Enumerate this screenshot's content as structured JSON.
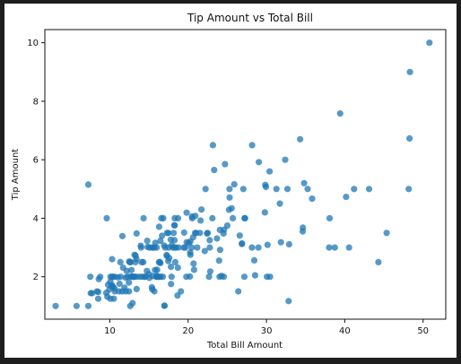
{
  "chart_data": {
    "type": "scatter",
    "title": "Tip Amount vs Total Bill",
    "xlabel": "Total Bill Amount",
    "ylabel": "Tip Amount",
    "xlim": [
      1.7,
      52.9
    ],
    "ylim": [
      0.55,
      10.45
    ],
    "xticks": [
      10,
      20,
      30,
      40,
      50
    ],
    "yticks": [
      2,
      4,
      6,
      8,
      10
    ],
    "grid": false,
    "point_color": "#1f77b4",
    "point_opacity": 0.75,
    "points": [
      [
        3.07,
        1.0
      ],
      [
        5.75,
        1.0
      ],
      [
        7.25,
        1.0
      ],
      [
        7.25,
        5.15
      ],
      [
        7.51,
        2.0
      ],
      [
        7.56,
        1.44
      ],
      [
        7.74,
        1.44
      ],
      [
        8.35,
        1.5
      ],
      [
        8.51,
        1.25
      ],
      [
        8.52,
        1.48
      ],
      [
        8.58,
        1.92
      ],
      [
        8.77,
        2.0
      ],
      [
        9.55,
        1.45
      ],
      [
        9.6,
        4.0
      ],
      [
        9.68,
        1.32
      ],
      [
        9.78,
        1.73
      ],
      [
        9.94,
        1.56
      ],
      [
        10.07,
        1.25
      ],
      [
        10.07,
        1.83
      ],
      [
        10.09,
        2.0
      ],
      [
        10.27,
        1.71
      ],
      [
        10.29,
        2.6
      ],
      [
        10.33,
        1.67
      ],
      [
        10.33,
        2.0
      ],
      [
        10.34,
        1.66
      ],
      [
        10.34,
        2.0
      ],
      [
        10.51,
        1.25
      ],
      [
        10.59,
        1.61
      ],
      [
        10.63,
        2.0
      ],
      [
        10.65,
        1.5
      ],
      [
        11.02,
        1.98
      ],
      [
        11.17,
        1.5
      ],
      [
        11.24,
        1.76
      ],
      [
        11.35,
        2.5
      ],
      [
        11.38,
        2.0
      ],
      [
        11.59,
        1.5
      ],
      [
        11.61,
        3.39
      ],
      [
        11.69,
        2.31
      ],
      [
        11.87,
        1.63
      ],
      [
        12.02,
        1.97
      ],
      [
        12.03,
        1.5
      ],
      [
        12.16,
        2.2
      ],
      [
        12.26,
        2.0
      ],
      [
        12.43,
        1.8
      ],
      [
        12.46,
        1.5
      ],
      [
        12.48,
        2.52
      ],
      [
        12.54,
        2.5
      ],
      [
        12.6,
        1.0
      ],
      [
        12.66,
        2.5
      ],
      [
        12.69,
        2.0
      ],
      [
        12.74,
        2.01
      ],
      [
        12.76,
        2.23
      ],
      [
        12.9,
        1.1
      ],
      [
        13.0,
        2.0
      ],
      [
        13.03,
        2.0
      ],
      [
        13.13,
        2.0
      ],
      [
        13.16,
        2.75
      ],
      [
        13.27,
        2.5
      ],
      [
        13.28,
        2.72
      ],
      [
        13.37,
        2.0
      ],
      [
        13.39,
        2.61
      ],
      [
        13.42,
        1.58
      ],
      [
        13.42,
        3.48
      ],
      [
        13.81,
        2.0
      ],
      [
        13.94,
        3.06
      ],
      [
        14.0,
        3.0
      ],
      [
        14.07,
        2.5
      ],
      [
        14.15,
        2.0
      ],
      [
        14.26,
        2.5
      ],
      [
        14.31,
        4.0
      ],
      [
        14.48,
        2.0
      ],
      [
        14.52,
        2.0
      ],
      [
        14.73,
        2.2
      ],
      [
        14.78,
        3.23
      ],
      [
        14.83,
        3.02
      ],
      [
        15.01,
        2.09
      ],
      [
        15.04,
        1.96
      ],
      [
        15.06,
        3.0
      ],
      [
        15.36,
        1.64
      ],
      [
        15.38,
        3.0
      ],
      [
        15.42,
        1.57
      ],
      [
        15.48,
        2.02
      ],
      [
        15.53,
        3.0
      ],
      [
        15.69,
        1.5
      ],
      [
        15.69,
        3.0
      ],
      [
        15.77,
        2.23
      ],
      [
        15.81,
        3.16
      ],
      [
        15.95,
        2.0
      ],
      [
        15.98,
        2.03
      ],
      [
        15.98,
        3.0
      ],
      [
        16.0,
        2.0
      ],
      [
        16.04,
        2.24
      ],
      [
        16.21,
        2.0
      ],
      [
        16.27,
        2.5
      ],
      [
        16.29,
        3.71
      ],
      [
        16.31,
        2.0
      ],
      [
        16.4,
        2.5
      ],
      [
        16.45,
        2.47
      ],
      [
        16.47,
        3.23
      ],
      [
        16.49,
        2.0
      ],
      [
        16.58,
        4.0
      ],
      [
        16.66,
        3.4
      ],
      [
        16.76,
        2.0
      ],
      [
        16.82,
        4.0
      ],
      [
        16.93,
        3.07
      ],
      [
        16.97,
        1.01
      ],
      [
        16.99,
        1.01
      ],
      [
        17.07,
        3.0
      ],
      [
        17.26,
        2.74
      ],
      [
        17.29,
        2.71
      ],
      [
        17.31,
        3.5
      ],
      [
        17.46,
        2.54
      ],
      [
        17.47,
        3.5
      ],
      [
        17.51,
        3.0
      ],
      [
        17.59,
        2.64
      ],
      [
        17.78,
        3.27
      ],
      [
        17.81,
        2.34
      ],
      [
        17.82,
        1.75
      ],
      [
        17.89,
        2.0
      ],
      [
        17.92,
        3.08
      ],
      [
        18.04,
        3.0
      ],
      [
        18.15,
        3.5
      ],
      [
        18.24,
        3.76
      ],
      [
        18.26,
        3.25
      ],
      [
        18.28,
        4.0
      ],
      [
        18.29,
        3.0
      ],
      [
        18.29,
        3.76
      ],
      [
        18.35,
        2.5
      ],
      [
        18.43,
        3.0
      ],
      [
        18.64,
        1.36
      ],
      [
        18.69,
        2.31
      ],
      [
        18.71,
        4.0
      ],
      [
        18.78,
        3.0
      ],
      [
        19.08,
        1.5
      ],
      [
        19.44,
        3.0
      ],
      [
        19.49,
        3.51
      ],
      [
        19.65,
        3.0
      ],
      [
        19.77,
        2.0
      ],
      [
        19.81,
        4.19
      ],
      [
        19.82,
        3.18
      ],
      [
        20.08,
        3.15
      ],
      [
        20.23,
        2.01
      ],
      [
        20.27,
        2.83
      ],
      [
        20.29,
        2.75
      ],
      [
        20.29,
        3.21
      ],
      [
        20.45,
        3.0
      ],
      [
        20.49,
        4.06
      ],
      [
        20.53,
        4.0
      ],
      [
        20.65,
        3.35
      ],
      [
        20.69,
        2.45
      ],
      [
        20.76,
        2.24
      ],
      [
        20.9,
        3.5
      ],
      [
        20.92,
        4.08
      ],
      [
        21.01,
        3.5
      ],
      [
        21.16,
        3.0
      ],
      [
        21.5,
        3.5
      ],
      [
        21.58,
        3.92
      ],
      [
        21.7,
        4.3
      ],
      [
        22.12,
        2.88
      ],
      [
        22.23,
        5.0
      ],
      [
        22.42,
        3.48
      ],
      [
        22.49,
        3.5
      ],
      [
        22.67,
        2.0
      ],
      [
        22.75,
        3.25
      ],
      [
        22.76,
        3.0
      ],
      [
        22.82,
        2.18
      ],
      [
        23.1,
        4.0
      ],
      [
        23.17,
        6.5
      ],
      [
        23.33,
        5.65
      ],
      [
        23.68,
        3.31
      ],
      [
        23.95,
        2.55
      ],
      [
        24.01,
        2.0
      ],
      [
        24.06,
        3.6
      ],
      [
        24.08,
        2.92
      ],
      [
        24.27,
        2.03
      ],
      [
        24.52,
        3.48
      ],
      [
        24.55,
        2.0
      ],
      [
        24.59,
        3.61
      ],
      [
        24.71,
        5.85
      ],
      [
        25.0,
        3.75
      ],
      [
        25.21,
        4.29
      ],
      [
        25.28,
        5.0
      ],
      [
        25.29,
        4.71
      ],
      [
        25.56,
        4.34
      ],
      [
        25.71,
        4.0
      ],
      [
        25.89,
        5.16
      ],
      [
        26.41,
        1.5
      ],
      [
        26.59,
        3.41
      ],
      [
        26.86,
        3.14
      ],
      [
        26.88,
        3.12
      ],
      [
        27.05,
        5.0
      ],
      [
        27.18,
        2.0
      ],
      [
        27.2,
        4.0
      ],
      [
        27.28,
        4.0
      ],
      [
        28.15,
        3.0
      ],
      [
        28.17,
        6.5
      ],
      [
        28.44,
        2.56
      ],
      [
        28.55,
        2.05
      ],
      [
        28.97,
        3.0
      ],
      [
        29.03,
        5.92
      ],
      [
        29.8,
        4.2
      ],
      [
        29.85,
        5.14
      ],
      [
        29.93,
        5.07
      ],
      [
        30.06,
        2.0
      ],
      [
        30.14,
        3.09
      ],
      [
        30.4,
        5.6
      ],
      [
        30.46,
        2.0
      ],
      [
        31.27,
        5.0
      ],
      [
        31.71,
        4.5
      ],
      [
        31.85,
        3.18
      ],
      [
        32.4,
        6.0
      ],
      [
        32.68,
        5.0
      ],
      [
        32.83,
        1.17
      ],
      [
        32.9,
        3.11
      ],
      [
        34.3,
        6.7
      ],
      [
        34.63,
        3.55
      ],
      [
        34.65,
        3.68
      ],
      [
        34.81,
        5.2
      ],
      [
        35.26,
        5.0
      ],
      [
        35.83,
        4.67
      ],
      [
        38.01,
        3.0
      ],
      [
        38.07,
        4.0
      ],
      [
        38.73,
        3.0
      ],
      [
        39.42,
        7.58
      ],
      [
        40.17,
        4.73
      ],
      [
        40.55,
        3.0
      ],
      [
        41.19,
        5.0
      ],
      [
        43.11,
        5.0
      ],
      [
        44.3,
        2.5
      ],
      [
        45.35,
        3.5
      ],
      [
        48.17,
        5.0
      ],
      [
        48.27,
        6.73
      ],
      [
        48.33,
        9.0
      ],
      [
        50.81,
        10.0
      ]
    ]
  }
}
